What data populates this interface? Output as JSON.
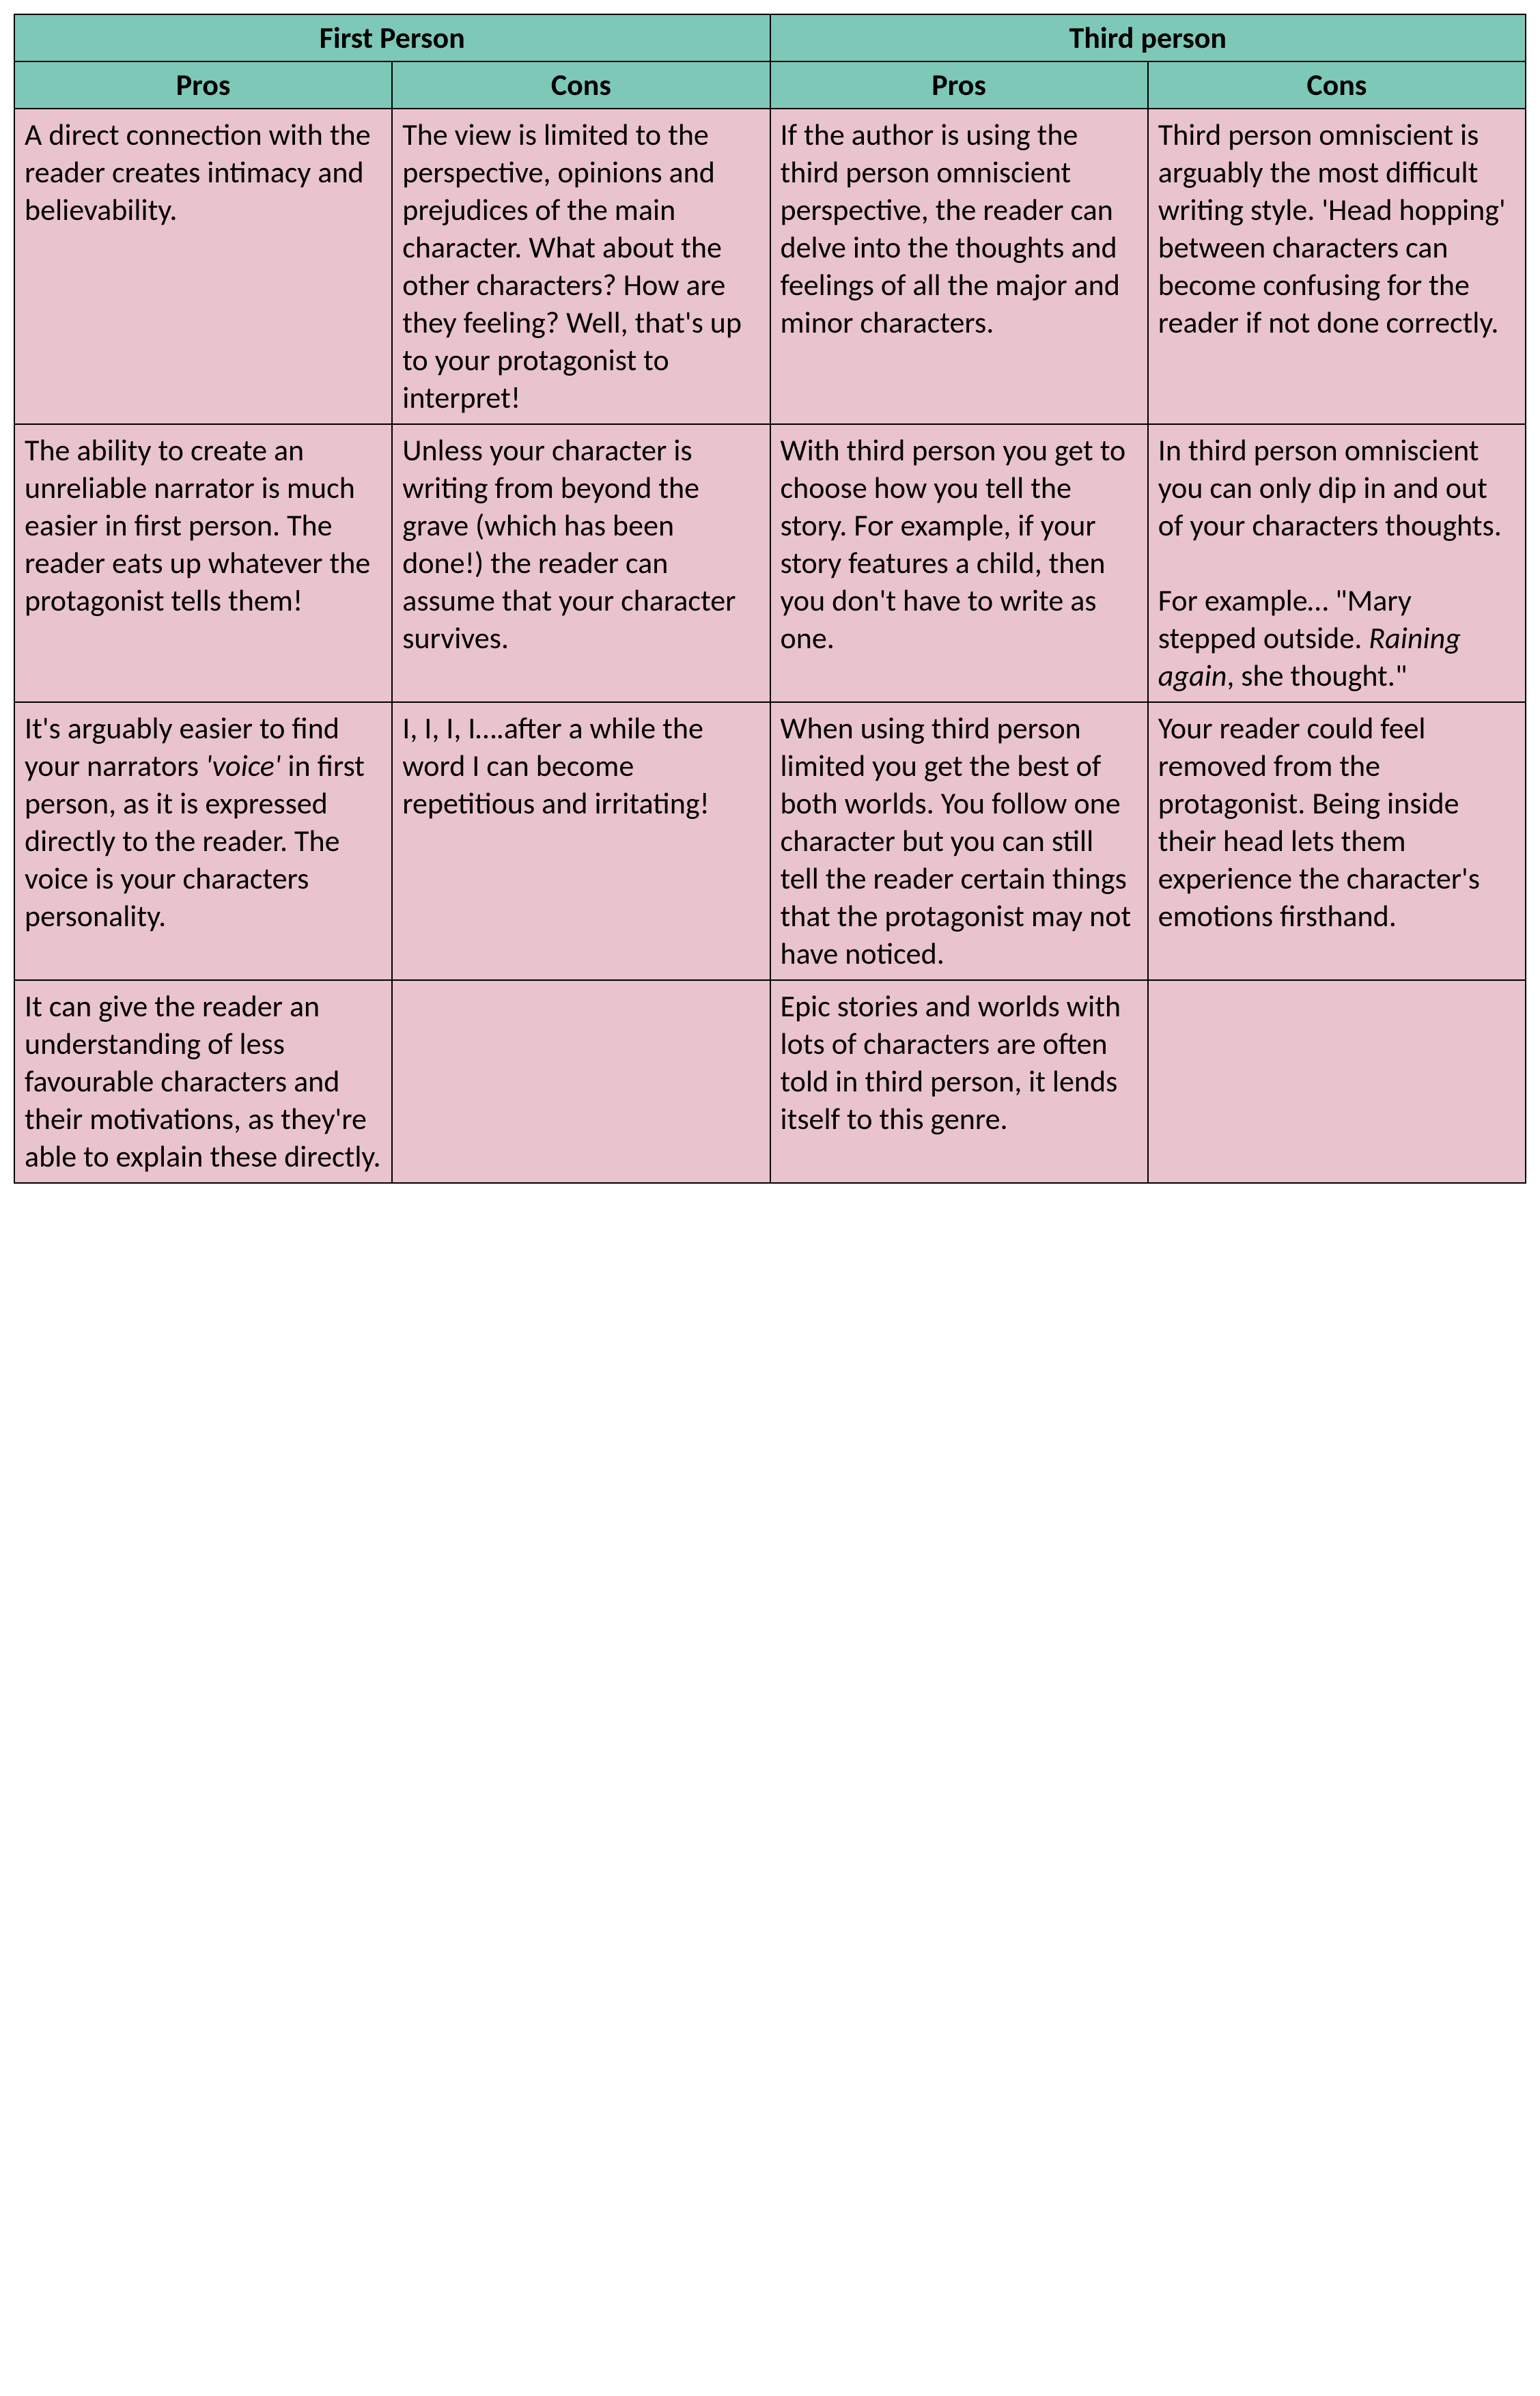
{
  "colors": {
    "header_bg": "#7ec8b8",
    "body_bg": "#e9c3cd",
    "border": "#000000",
    "text": "#000000"
  },
  "typography": {
    "font_family": "Calibri",
    "body_fontsize": 44,
    "header_fontsize": 44,
    "header_weight": "bold"
  },
  "table": {
    "type": "table",
    "top_headers": [
      "First Person",
      "Third person"
    ],
    "sub_headers": [
      "Pros",
      "Cons",
      "Pros",
      "Cons"
    ],
    "rows": [
      {
        "fp_pros": "A direct connection with the reader creates intimacy and believability.",
        "fp_cons": "The view is limited to the perspective, opinions and prejudices of the main character. What about the other characters? How are they feeling? Well, that's up to your protagonist to interpret!",
        "tp_pros": "If the author is using the third person omniscient perspective, the reader can delve into the thoughts and feelings of all the major and minor characters.",
        "tp_cons": "Third person omniscient is arguably the most difficult writing style. 'Head hopping' between characters can become confusing for the reader if not done correctly."
      },
      {
        "fp_pros": "The ability to create an unreliable narrator is much easier in first person. The reader eats up whatever the protagonist tells them!",
        "fp_cons": "Unless your character is writing from beyond the grave (which has been done!) the reader can assume that your character survives.",
        "tp_pros": "With third person you get to choose how you tell the story. For example, if your story features a child, then you don't have to write as one.",
        "tp_cons_pre": "In third person omniscient you can only dip in and out of your characters thoughts.\n\nFor example… \"Mary stepped outside. ",
        "tp_cons_italic": "Raining again",
        "tp_cons_post": ", she thought.\""
      },
      {
        "fp_pros_pre": "It's arguably easier to find your narrators ",
        "fp_pros_italic": "'voice'",
        "fp_pros_post": " in first person, as it is expressed directly to the reader. The voice is your characters personality.",
        "fp_cons": "I, I, I, I….after a while the word I can become repetitious and irritating!",
        "tp_pros": "When using third person limited you get the best of both worlds. You follow one character but you can still tell the reader certain things that the protagonist may not have noticed.",
        "tp_cons": "Your reader could feel removed from the protagonist. Being inside their head lets them experience the character's emotions firsthand."
      },
      {
        "fp_pros": "It can give the reader an understanding of less favourable characters and their motivations, as they're able to explain these directly.",
        "fp_cons": "",
        "tp_pros": "Epic stories and worlds with lots of characters are often told in third person, it lends itself to this genre.",
        "tp_cons": ""
      }
    ]
  }
}
